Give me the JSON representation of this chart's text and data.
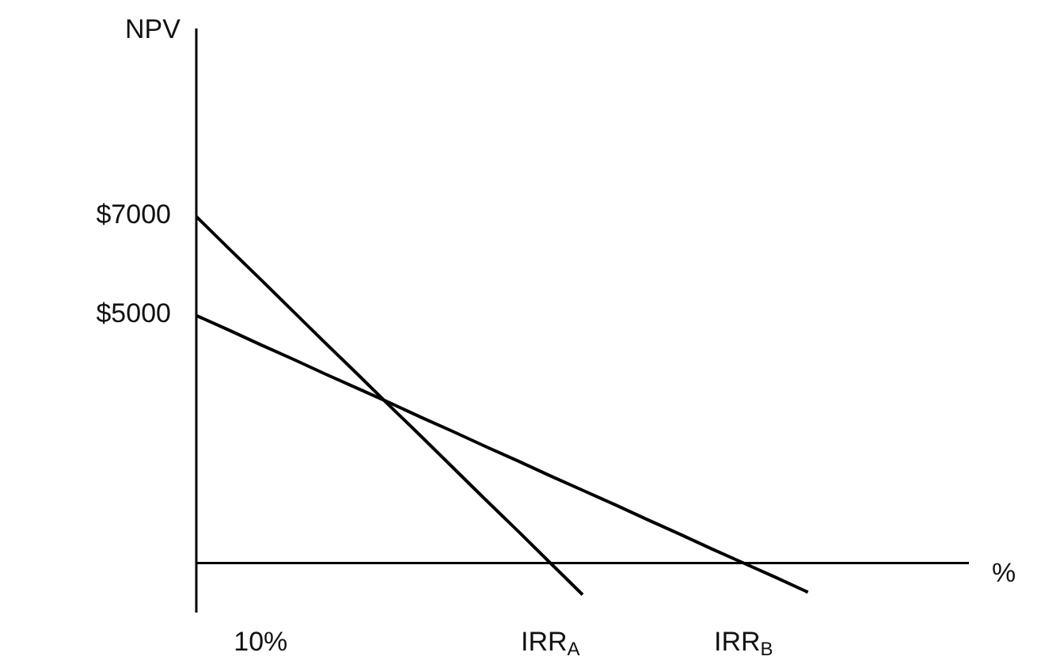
{
  "chart_data": {
    "type": "line",
    "ylabel": "NPV",
    "xlabel": "%",
    "categories": [
      null,
      null,
      "10%",
      null,
      null,
      null,
      null,
      null,
      null,
      null,
      null,
      "IRR$_{A}$",
      null,
      null,
      null,
      null,
      null,
      "IRR$_{B}$",
      null,
      null,
      null,
      null,
      null,
      null,
      null
    ],
    "series": [
      {
        "color": "#000000",
        "values": [
          7000,
          6360,
          5730,
          5090,
          4450,
          3820,
          3180,
          2550,
          1910,
          1270,
          640,
          0,
          -640,
          null,
          null,
          null,
          null,
          null,
          null,
          null,
          null,
          null,
          null,
          null,
          null
        ]
      },
      {
        "color": "#000000",
        "values": [
          5000,
          4710,
          4410,
          4120,
          3820,
          3530,
          3240,
          2940,
          2650,
          2350,
          2060,
          1760,
          1470,
          1180,
          880,
          590,
          290,
          0,
          -290,
          -590,
          null,
          null,
          null,
          null,
          null
        ]
      }
    ],
    "ylim": [
      -1000,
      10800
    ],
    "yticks": [
      {
        "value": 5000,
        "label": "$5000"
      },
      {
        "value": 7000,
        "label": "$7000"
      }
    ],
    "grid": false,
    "marker": "none",
    "line_style": "solid"
  }
}
